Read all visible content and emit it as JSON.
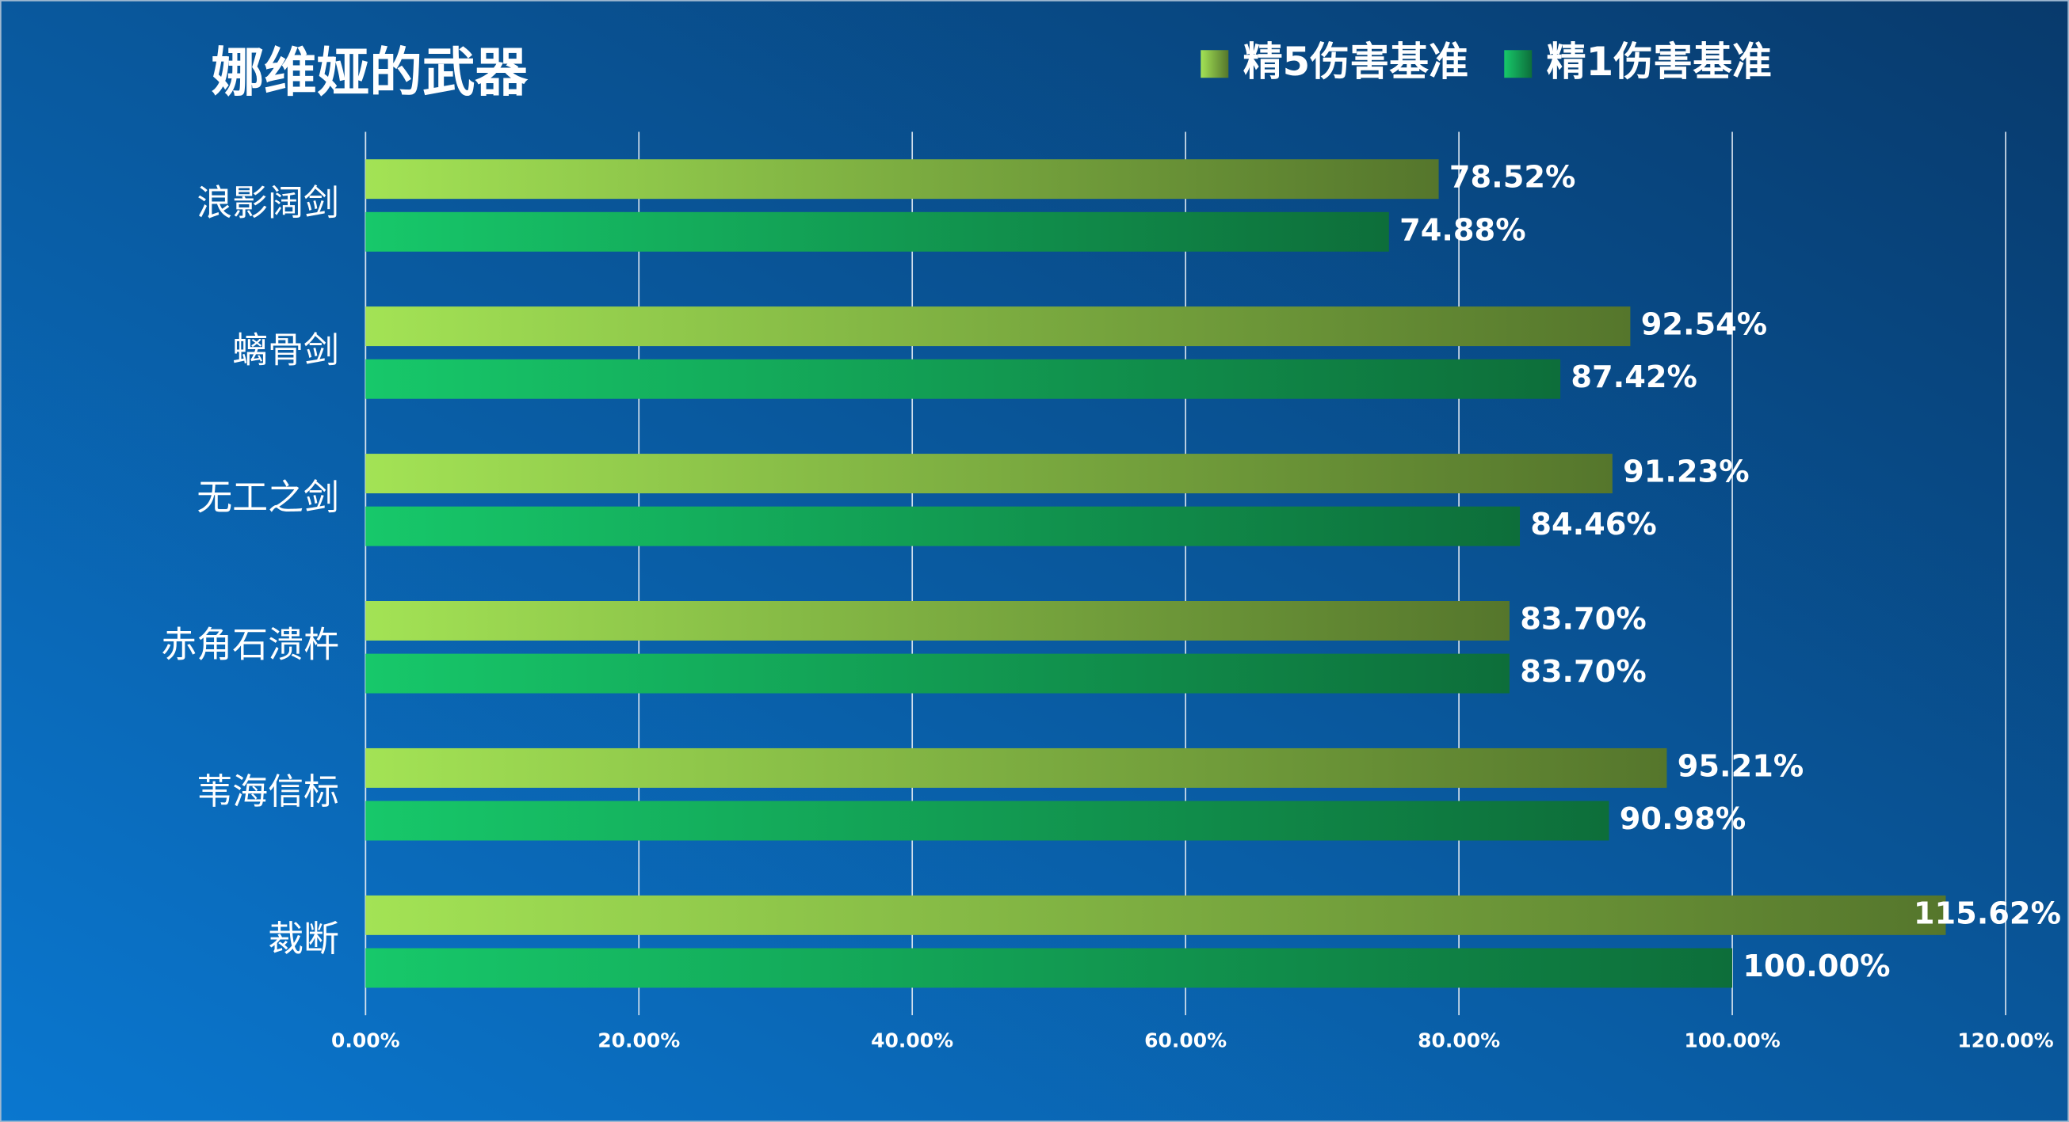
{
  "chart_data": {
    "type": "hbar",
    "title": "娜维娅的武器",
    "categories": [
      "浪影阔剑",
      "螭骨剑",
      "无工之剑",
      "赤角石溃杵",
      "苇海信标",
      "裁断"
    ],
    "series": [
      {
        "name": "精5伤害基准",
        "color": "#a3e355",
        "values": [
          78.52,
          92.54,
          91.23,
          83.7,
          95.21,
          115.62
        ],
        "value_labels": [
          "78.52%",
          "92.54%",
          "91.23%",
          "83.70%",
          "95.21%",
          "115.62%"
        ]
      },
      {
        "name": "精1伤害基准",
        "color": "#17c86a",
        "values": [
          74.88,
          87.42,
          84.46,
          83.7,
          90.98,
          100.0
        ],
        "value_labels": [
          "74.88%",
          "87.42%",
          "84.46%",
          "83.70%",
          "90.98%",
          "100.00%"
        ]
      }
    ],
    "xlim": [
      0,
      120
    ],
    "xticks": [
      {
        "value": 0,
        "label": "0.00%"
      },
      {
        "value": 20,
        "label": "20.00%"
      },
      {
        "value": 40,
        "label": "40.00%"
      },
      {
        "value": 60,
        "label": "60.00%"
      },
      {
        "value": 80,
        "label": "80.00%"
      },
      {
        "value": 100,
        "label": "100.00%"
      },
      {
        "value": 120,
        "label": "120.00%"
      }
    ],
    "grid": true
  }
}
